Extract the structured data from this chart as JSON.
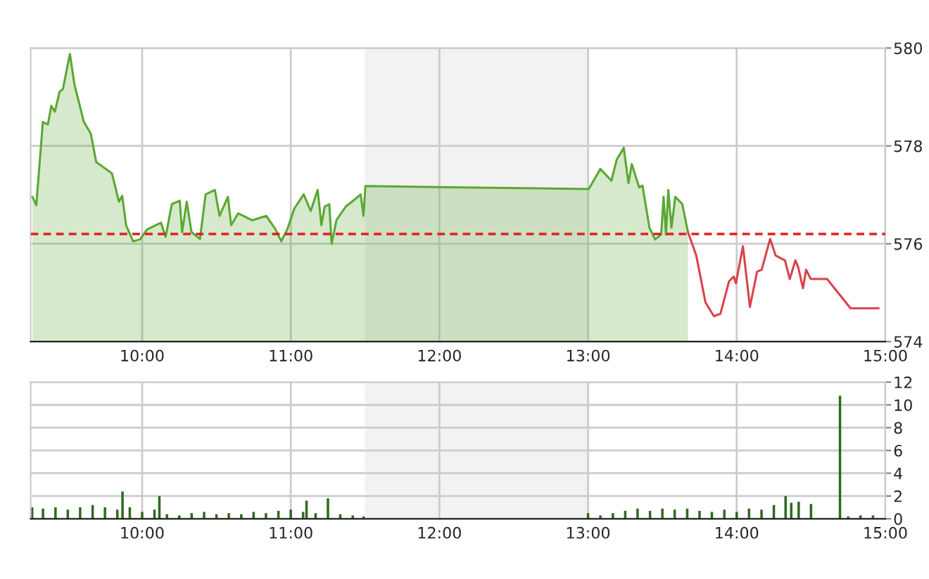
{
  "chart_data": [
    {
      "type": "area",
      "xlim": [
        9.25,
        15
      ],
      "xticks": [
        {
          "value": 10,
          "label": "10:00"
        },
        {
          "value": 11,
          "label": "11:00"
        },
        {
          "value": 12,
          "label": "12:00"
        },
        {
          "value": 13,
          "label": "13:00"
        },
        {
          "value": 14,
          "label": "14:00"
        },
        {
          "value": 15,
          "label": "15:00"
        }
      ],
      "ylim": [
        574,
        580
      ],
      "yticks": [
        574,
        576,
        578,
        580
      ],
      "grid": true,
      "line_style": "solid",
      "marker": "none",
      "series": [
        {
          "color": "#5aa832",
          "x": [
            9.262,
            9.288,
            9.332,
            9.366,
            9.389,
            9.413,
            9.445,
            9.467,
            9.514,
            9.545,
            9.608,
            9.655,
            9.691,
            9.797,
            9.844,
            9.866,
            9.892,
            9.939,
            9.986,
            10.033,
            10.127,
            10.158,
            10.2,
            10.253,
            10.269,
            10.3,
            10.332,
            10.389,
            10.427,
            10.489,
            10.521,
            10.577,
            10.599,
            10.646,
            10.74,
            10.835,
            10.898,
            10.936,
            10.976,
            11.024,
            11.087,
            11.134,
            11.181,
            11.206,
            11.228,
            11.259,
            11.275,
            11.307,
            11.37,
            11.432,
            11.47,
            11.489,
            11.502,
            12.156,
            13.005,
            13.083,
            13.157,
            13.193,
            13.24,
            13.272,
            13.294,
            13.344,
            13.366,
            13.413,
            13.451,
            13.492,
            13.508,
            13.524,
            13.54,
            13.561,
            13.587,
            13.634,
            13.672
          ],
          "values": [
            576.96,
            576.79,
            578.49,
            578.44,
            578.82,
            578.7,
            579.11,
            579.16,
            579.88,
            579.25,
            578.49,
            578.25,
            577.67,
            577.44,
            576.86,
            576.98,
            576.38,
            576.05,
            576.09,
            576.29,
            576.43,
            576.14,
            576.81,
            576.88,
            576.24,
            576.86,
            576.24,
            576.1,
            577.01,
            577.1,
            576.57,
            576.96,
            576.38,
            576.62,
            576.48,
            576.57,
            576.29,
            576.05,
            576.29,
            576.72,
            577.01,
            576.67,
            577.1,
            576.38,
            576.76,
            576.81,
            576.0,
            576.48,
            576.76,
            576.91,
            577.01,
            576.57,
            577.18,
            577.15,
            577.12,
            577.53,
            577.29,
            577.72,
            577.96,
            577.24,
            577.63,
            577.15,
            577.19,
            576.33,
            576.09,
            576.19,
            576.96,
            576.19,
            577.1,
            576.33,
            576.96,
            576.81,
            576.24
          ]
        },
        {
          "type": "line",
          "color": "#d9434b",
          "x": [
            13.672,
            13.728,
            13.79,
            13.847,
            13.891,
            13.948,
            13.98,
            13.995,
            14.042,
            14.089,
            14.137,
            14.168,
            14.225,
            14.262,
            14.325,
            14.357,
            14.395,
            14.414,
            14.446,
            14.467,
            14.498,
            14.608,
            14.766,
            14.955
          ],
          "values": [
            576.24,
            575.76,
            574.8,
            574.52,
            574.57,
            575.23,
            575.33,
            575.19,
            575.95,
            574.71,
            575.43,
            575.47,
            576.1,
            575.76,
            575.66,
            575.28,
            575.66,
            575.52,
            575.09,
            575.47,
            575.28,
            575.28,
            574.68,
            574.68
          ]
        }
      ],
      "ref_lines": [
        {
          "axis": "y",
          "value": 576.2,
          "color": "#e31e1e",
          "line_style": "dashed"
        }
      ],
      "bands": [
        {
          "axis": "x",
          "from": 11.5,
          "to": 13,
          "color": "#f2f2f2"
        }
      ]
    },
    {
      "type": "bar",
      "xlim": [
        9.25,
        15
      ],
      "xticks": [
        {
          "value": 10,
          "label": "10:00"
        },
        {
          "value": 11,
          "label": "11:00"
        },
        {
          "value": 12,
          "label": "12:00"
        },
        {
          "value": 13,
          "label": "13:00"
        },
        {
          "value": 14,
          "label": "14:00"
        },
        {
          "value": 15,
          "label": "15:00"
        }
      ],
      "ylim": [
        0,
        12
      ],
      "yticks": [
        0,
        2,
        4,
        6,
        8,
        10,
        12
      ],
      "grid": true,
      "series": [
        {
          "color": "#2e6b1f",
          "x": [
            9.26,
            9.333,
            9.417,
            9.5,
            9.583,
            9.667,
            9.75,
            9.833,
            9.868,
            9.917,
            10.0,
            10.083,
            10.116,
            10.167,
            10.25,
            10.333,
            10.417,
            10.5,
            10.583,
            10.667,
            10.75,
            10.833,
            10.917,
            11.0,
            11.083,
            11.106,
            11.167,
            11.25,
            11.333,
            11.417,
            11.49,
            13.0,
            13.083,
            13.167,
            13.25,
            13.333,
            13.417,
            13.5,
            13.583,
            13.667,
            13.75,
            13.833,
            13.917,
            14.0,
            14.083,
            14.167,
            14.25,
            14.329,
            14.367,
            14.417,
            14.5,
            14.583,
            14.695,
            14.75,
            14.833,
            14.917
          ],
          "values": [
            1.0,
            0.9,
            1.0,
            0.8,
            1.0,
            1.2,
            1.0,
            0.8,
            2.4,
            1.0,
            0.6,
            0.8,
            2.0,
            0.4,
            0.3,
            0.5,
            0.6,
            0.4,
            0.5,
            0.4,
            0.6,
            0.5,
            0.7,
            0.8,
            0.6,
            1.6,
            0.5,
            1.8,
            0.4,
            0.3,
            0.2,
            0.5,
            0.3,
            0.5,
            0.7,
            0.9,
            0.7,
            0.9,
            0.8,
            0.9,
            0.7,
            0.6,
            0.8,
            0.6,
            0.9,
            0.8,
            1.2,
            2.0,
            1.4,
            1.5,
            1.3,
            null,
            10.8,
            0.2,
            0.3,
            0.3
          ]
        }
      ],
      "bands": [
        {
          "axis": "x",
          "from": 11.5,
          "to": 13,
          "color": "#f2f2f2"
        }
      ]
    }
  ]
}
